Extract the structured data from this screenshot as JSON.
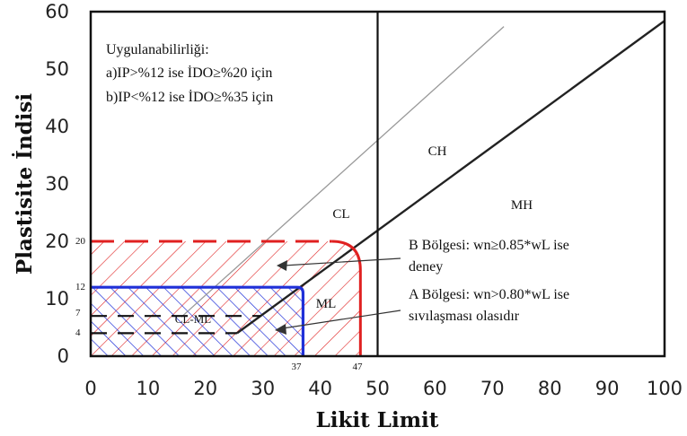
{
  "chart_data": {
    "type": "line",
    "xlabel": "Likit Limit",
    "ylabel": "Plastisite İndisi",
    "xlim": [
      0,
      100
    ],
    "ylim": [
      0,
      60
    ],
    "xticks": [
      "0",
      "10",
      "20",
      "30",
      "40",
      "50",
      "60",
      "70",
      "80",
      "90",
      "100"
    ],
    "yticks": [
      "0",
      "10",
      "20",
      "30",
      "40",
      "50",
      "60"
    ],
    "colors": {
      "red_zone": "#e02020",
      "blue_zone": "#2030d8",
      "a_line": "#222222",
      "u_line": "#999999"
    },
    "lines": {
      "a_line": {
        "x": [
          25.5,
          100
        ],
        "y": [
          4,
          58.4
        ]
      },
      "u_line": {
        "x": [
          16,
          72
        ],
        "y": [
          7,
          57.4
        ]
      },
      "ll50": {
        "x": [
          50,
          50
        ],
        "y": [
          0,
          60
        ]
      },
      "ip7": {
        "x": [
          0,
          29.6
        ],
        "y": [
          7,
          7
        ]
      },
      "ip4": {
        "x": [
          0,
          25.5
        ],
        "y": [
          4,
          4
        ]
      }
    },
    "zones": {
      "red": {
        "ip_top": 20,
        "ll_right": 47,
        "corner": 5
      },
      "blue": {
        "ip_top": 12,
        "ll_right": 37,
        "corner": 1
      }
    },
    "edge_labels": {
      "y20": "20",
      "y12": "12",
      "y7": "7",
      "y4": "4",
      "x37": "37",
      "x47": "47"
    },
    "region_labels": {
      "cl": "CL",
      "ch": "CH",
      "mh": "MH",
      "ml": "ML",
      "clml": "CL-ML"
    },
    "annotations": {
      "applicability": {
        "line1": "Uygulanabilirliği:",
        "line2": "a)IP>%12 ise İDO≥%20  için",
        "line3": "b)IP<%12 ise İDO≥%35  için"
      },
      "zone_b": {
        "line1": "B  Bölgesi:  wn≥0.85*wL  ise",
        "line2": "deney"
      },
      "zone_a": {
        "line1": "A Bölgesi: wn>0.80*wL  ise",
        "line2": "sıvılaşması olasıdır"
      }
    }
  }
}
